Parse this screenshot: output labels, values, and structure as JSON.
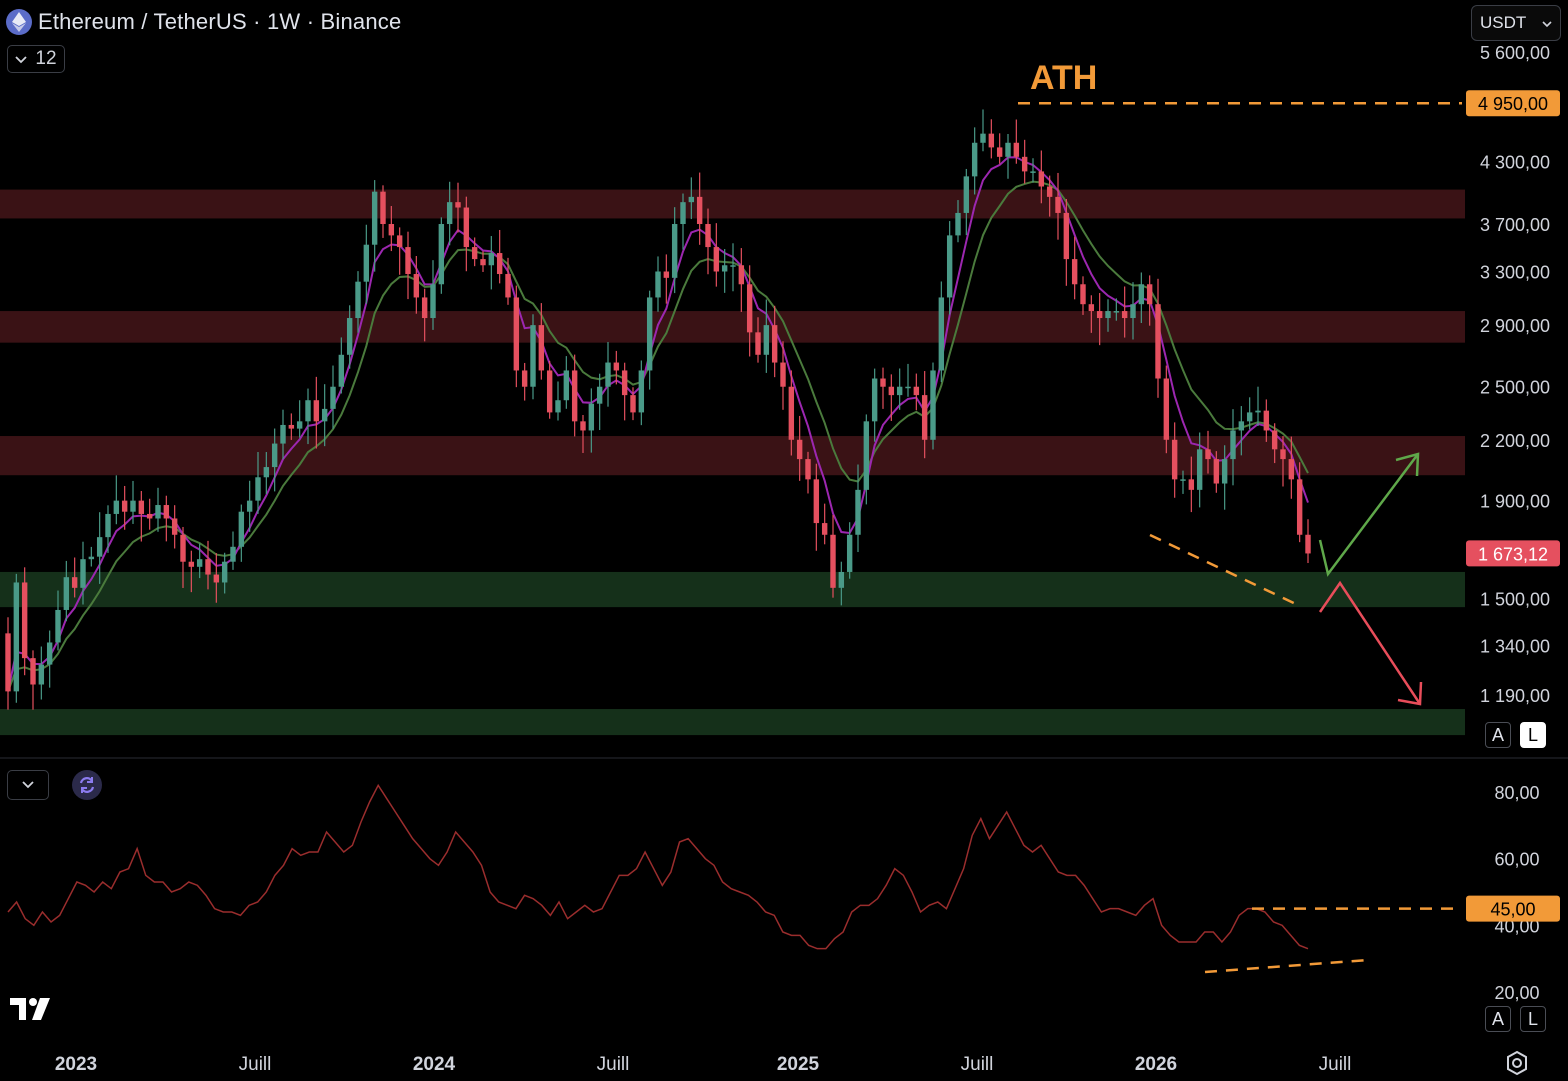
{
  "header": {
    "title": "Ethereum / TetherUS · 1W · Binance",
    "interval_value": "12",
    "currency": "USDT",
    "logo_icon": "ethereum-logo-icon"
  },
  "colors": {
    "background": "#000000",
    "up_candle": "#4a9a88",
    "down_candle": "#e5505f",
    "ema_fast": "#9c27b0",
    "ema_slow": "#4a7a3c",
    "resistance_zone": "#3a1215",
    "support_zone": "#15301a",
    "annotation_orange": "#f29a38",
    "arrow_green": "#5fa84a",
    "arrow_red": "#e84d5a",
    "rsi_line": "#9a2d2d"
  },
  "chart_data": [
    {
      "type": "candlestick",
      "title": "Ethereum / TetherUS · 1W · Binance",
      "price_axis_labels": [
        "5 600,00",
        "4 300,00",
        "3 700,00",
        "3 300,00",
        "2 900,00",
        "2 500,00",
        "2 200,00",
        "1 900,00",
        "1 500,00",
        "1 340,00",
        "1 190,00"
      ],
      "time_axis_labels": [
        "2023",
        "Juill",
        "2024",
        "Juill",
        "2025",
        "Juill",
        "2026",
        "Juill"
      ],
      "ylim": [
        1000,
        5700
      ],
      "scale": "log",
      "current_price": "1 673,12",
      "current_price_value": 1673.12,
      "ath_label": "ATH",
      "ath_value_label": "4 950,00",
      "ath_value": 4950,
      "resistance_zones": [
        [
          3750,
          4020
        ],
        [
          2780,
          3000
        ],
        [
          2020,
          2220
        ]
      ],
      "support_zones": [
        [
          1470,
          1600
        ],
        [
          1080,
          1150
        ]
      ],
      "series": [
        {
          "name": "ETHUSDT",
          "kind": "candles",
          "weekly_close_path": [
            1200,
            1560,
            1300,
            1220,
            1280,
            1350,
            1460,
            1580,
            1540,
            1650,
            1660,
            1740,
            1840,
            1900,
            1850,
            1900,
            1840,
            1820,
            1880,
            1820,
            1750,
            1640,
            1620,
            1650,
            1590,
            1560,
            1640,
            1700,
            1850,
            1900,
            2010,
            2060,
            2180,
            2280,
            2260,
            2300,
            2420,
            2300,
            2370,
            2500,
            2700,
            2950,
            3220,
            3520,
            4000,
            3700,
            3600,
            3500,
            3280,
            3100,
            2950,
            3200,
            3700,
            3900,
            3850,
            3500,
            3400,
            3350,
            3450,
            3280,
            3100,
            2600,
            2500,
            2900,
            2600,
            2350,
            2420,
            2600,
            2300,
            2250,
            2400,
            2500,
            2650,
            2600,
            2450,
            2350,
            2600,
            3100,
            3300,
            3250,
            3700,
            3900,
            3950,
            3700,
            3500,
            3300,
            3350,
            3350,
            3200,
            2850,
            2700,
            2900,
            2650,
            2500,
            2200,
            2100,
            2000,
            1800,
            1750,
            1540,
            1600,
            1750,
            1950,
            2300,
            2550,
            2500,
            2450,
            2500,
            2500,
            2450,
            2200,
            2600,
            3100,
            3600,
            3800,
            4150,
            4500,
            4600,
            4450,
            4350,
            4500,
            4350,
            4200,
            4200,
            4050,
            3950,
            3800,
            3400,
            3200,
            3050,
            3000,
            2950,
            3000,
            3000,
            2950,
            3050,
            3200,
            3050,
            2550,
            2200,
            2000,
            2000,
            1950,
            2150,
            2100,
            1980,
            2100,
            2250,
            2300,
            2350,
            2360,
            2250,
            2150,
            2100,
            2000,
            1750,
            1673
          ]
        },
        {
          "name": "EMA fast",
          "kind": "line"
        },
        {
          "name": "EMA slow",
          "kind": "line"
        }
      ],
      "annotations": {
        "bullish_arrow": "up-right",
        "bearish_arrow": "down-right",
        "divergence_dashes": "lower lows on price"
      }
    },
    {
      "type": "line",
      "title": "",
      "axis_labels": [
        "80,00",
        "60,00",
        "40,00",
        "20,00"
      ],
      "ylim": [
        18,
        92
      ],
      "level_label": "45,00",
      "level_value": 45,
      "series": [
        {
          "name": "RSI",
          "values": [
            44,
            47,
            42,
            40,
            44,
            41,
            43,
            48,
            53,
            52,
            50,
            53,
            51,
            56,
            57,
            63,
            55,
            53,
            53,
            50,
            51,
            53,
            52,
            49,
            45,
            44,
            44,
            43,
            46,
            47,
            50,
            55,
            58,
            63,
            61,
            62,
            62,
            68,
            65,
            62,
            64,
            71,
            77,
            82,
            78,
            74,
            70,
            66,
            63,
            60,
            58,
            62,
            68,
            65,
            62,
            58,
            50,
            47,
            46,
            45,
            49,
            48,
            46,
            43,
            47,
            42,
            44,
            46,
            44,
            45,
            50,
            55,
            55,
            57,
            62,
            57,
            52,
            56,
            65,
            66,
            63,
            60,
            58,
            53,
            51,
            50,
            49,
            47,
            44,
            43,
            38,
            37,
            37,
            34,
            33,
            33,
            36,
            38,
            44,
            46,
            46,
            48,
            52,
            57,
            55,
            50,
            44,
            46,
            47,
            45,
            51,
            57,
            67,
            72,
            66,
            70,
            74,
            69,
            64,
            62,
            64,
            60,
            56,
            55,
            55,
            52,
            48,
            44,
            45,
            45,
            44,
            43,
            46,
            48,
            40,
            37,
            35,
            35,
            35,
            38,
            38,
            35,
            38,
            43,
            45,
            45,
            44,
            41,
            40,
            37,
            34,
            33
          ]
        }
      ]
    }
  ],
  "controls": {
    "auto_label": "A",
    "log_label": "L"
  }
}
